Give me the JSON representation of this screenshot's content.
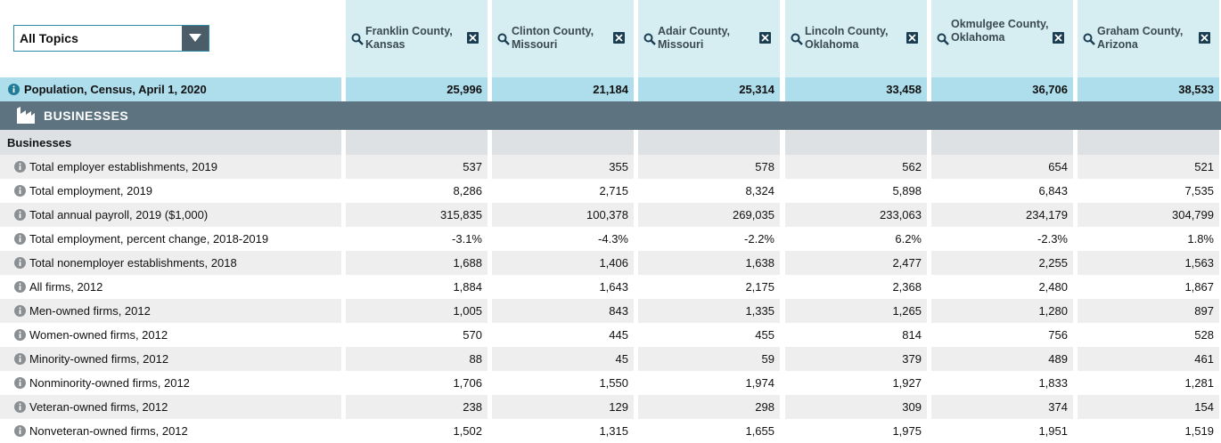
{
  "header": {
    "topic_select": {
      "value": "All Topics"
    },
    "columns": [
      {
        "name": "Franklin County, Kansas"
      },
      {
        "name": "Clinton County, Missouri"
      },
      {
        "name": "Adair County, Missouri"
      },
      {
        "name": "Lincoln County, Oklahoma"
      },
      {
        "name": "Okmulgee County, Oklahoma"
      },
      {
        "name": "Graham County, Arizona"
      }
    ],
    "icons": {
      "search": "search-icon",
      "remove": "close-icon"
    }
  },
  "population": {
    "label": "Population, Census, April 1, 2020",
    "values": [
      "25,996",
      "21,184",
      "25,314",
      "33,458",
      "36,706",
      "38,533"
    ]
  },
  "section": {
    "title": "BUSINESSES",
    "icon": "industry-icon"
  },
  "subsection": {
    "title": "Businesses"
  },
  "rows": [
    {
      "label": "Total employer establishments, 2019",
      "values": [
        "537",
        "355",
        "578",
        "562",
        "654",
        "521"
      ]
    },
    {
      "label": "Total employment, 2019",
      "values": [
        "8,286",
        "2,715",
        "8,324",
        "5,898",
        "6,843",
        "7,535"
      ]
    },
    {
      "label": "Total annual payroll, 2019 ($1,000)",
      "values": [
        "315,835",
        "100,378",
        "269,035",
        "233,063",
        "234,179",
        "304,799"
      ]
    },
    {
      "label": "Total employment, percent change, 2018-2019",
      "values": [
        "-3.1%",
        "-4.3%",
        "-2.2%",
        "6.2%",
        "-2.3%",
        "1.8%"
      ]
    },
    {
      "label": "Total nonemployer establishments, 2018",
      "values": [
        "1,688",
        "1,406",
        "1,638",
        "2,477",
        "2,255",
        "1,563"
      ]
    },
    {
      "label": "All firms, 2012",
      "values": [
        "1,884",
        "1,643",
        "2,175",
        "2,368",
        "2,480",
        "1,867"
      ]
    },
    {
      "label": "Men-owned firms, 2012",
      "values": [
        "1,005",
        "843",
        "1,335",
        "1,265",
        "1,280",
        "897"
      ]
    },
    {
      "label": "Women-owned firms, 2012",
      "values": [
        "570",
        "445",
        "455",
        "814",
        "756",
        "528"
      ]
    },
    {
      "label": "Minority-owned firms, 2012",
      "values": [
        "88",
        "45",
        "59",
        "379",
        "489",
        "461"
      ]
    },
    {
      "label": "Nonminority-owned firms, 2012",
      "values": [
        "1,706",
        "1,550",
        "1,974",
        "1,927",
        "1,833",
        "1,281"
      ]
    },
    {
      "label": "Veteran-owned firms, 2012",
      "values": [
        "238",
        "129",
        "298",
        "309",
        "374",
        "154"
      ]
    },
    {
      "label": "Nonveteran-owned firms, 2012",
      "values": [
        "1,502",
        "1,315",
        "1,655",
        "1,975",
        "1,951",
        "1,519"
      ]
    }
  ],
  "colors": {
    "header_bg": "#d6eef2",
    "population_bg": "#aeddec",
    "section_band": "#5e7380",
    "subsection_bg": "#dde1e4",
    "alt_row": "#eeeeee",
    "dropdown_border": "#2f8aa3"
  }
}
